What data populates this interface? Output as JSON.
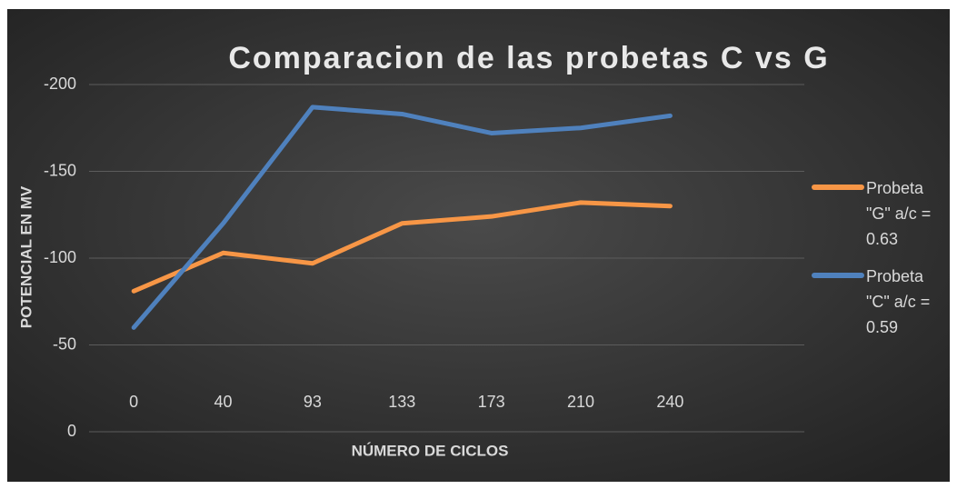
{
  "chart_data": {
    "type": "line",
    "title": "Comparacion de las probetas C vs G",
    "x_label": "NÚMERO DE CICLOS",
    "y_label": "POTENCIAL EN MV",
    "categories": [
      "0",
      "40",
      "93",
      "133",
      "173",
      "210",
      "240",
      null
    ],
    "series": [
      {
        "name": "Probeta \"G\" a/c = 0.63",
        "color": "#f79646",
        "values": [
          -81,
          -103,
          -97,
          -120,
          -124,
          -132,
          -130,
          null
        ]
      },
      {
        "name": "Probeta \"C\" a/c = 0.59",
        "color": "#4f81bd",
        "values": [
          -60,
          -120,
          -187,
          -183,
          -172,
          -175,
          -182,
          null
        ]
      }
    ],
    "ylim": [
      0,
      -200
    ],
    "yticks": [
      -200,
      -150,
      -100,
      -50,
      0
    ],
    "grid": true,
    "legend": "right"
  }
}
